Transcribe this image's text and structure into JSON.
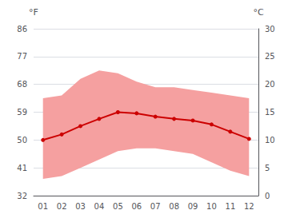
{
  "chart_data": {
    "type": "line",
    "categories": [
      "01",
      "02",
      "03",
      "04",
      "05",
      "06",
      "07",
      "08",
      "09",
      "10",
      "11",
      "12"
    ],
    "series": [
      {
        "type": "band",
        "color": "#f5a0a0",
        "lower": [
          3.0,
          3.5,
          5.0,
          6.5,
          8.0,
          8.5,
          8.5,
          8.0,
          7.5,
          6.0,
          4.5,
          3.5
        ],
        "upper": [
          17.5,
          18.0,
          21.0,
          22.5,
          22.0,
          20.5,
          19.5,
          19.5,
          19.0,
          18.5,
          18.0,
          17.5
        ]
      },
      {
        "type": "line",
        "color": "#cc0000",
        "marker": "circle",
        "values": [
          10.0,
          11.0,
          12.5,
          13.8,
          15.0,
          14.8,
          14.2,
          13.8,
          13.5,
          12.8,
          11.5,
          10.2
        ]
      }
    ],
    "ylabel": "°C",
    "ylim": [
      0,
      30
    ],
    "yticks": [
      0,
      5,
      10,
      15,
      20,
      25,
      30
    ],
    "y2label": "°F",
    "y2lim": [
      32,
      86
    ],
    "y2ticks": [
      32,
      41,
      50,
      59,
      68,
      77,
      86
    ],
    "grid": true
  }
}
